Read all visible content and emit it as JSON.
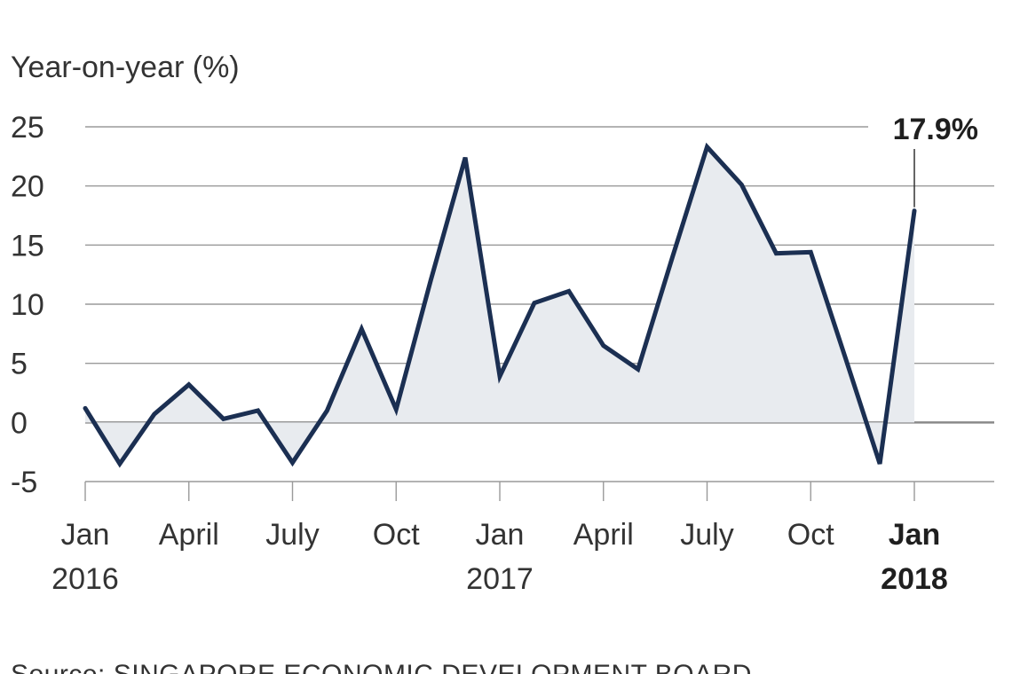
{
  "chart_data": {
    "type": "area",
    "ylabel": "Year-on-year (%)",
    "ylim": [
      -5,
      25
    ],
    "yticks": [
      25,
      20,
      15,
      10,
      5,
      0,
      -5
    ],
    "grid": true,
    "x": [
      "2016-01",
      "2016-02",
      "2016-03",
      "2016-04",
      "2016-05",
      "2016-06",
      "2016-07",
      "2016-08",
      "2016-09",
      "2016-10",
      "2016-11",
      "2016-12",
      "2017-01",
      "2017-02",
      "2017-03",
      "2017-04",
      "2017-05",
      "2017-06",
      "2017-07",
      "2017-08",
      "2017-09",
      "2017-10",
      "2017-11",
      "2017-12",
      "2018-01"
    ],
    "series": [
      {
        "values": [
          1.2,
          -3.5,
          0.7,
          3.2,
          0.3,
          1.0,
          -3.4,
          1.0,
          7.9,
          1.1,
          12.0,
          22.4,
          3.9,
          10.1,
          11.1,
          6.5,
          4.5,
          14.0,
          23.3,
          20.1,
          14.3,
          14.4,
          5.5,
          -3.5,
          17.9
        ]
      }
    ],
    "x_ticks": [
      {
        "index": 0,
        "label": "Jan",
        "sublabel": "2016",
        "bold": false
      },
      {
        "index": 3,
        "label": "April",
        "sublabel": "",
        "bold": false
      },
      {
        "index": 6,
        "label": "July",
        "sublabel": "",
        "bold": false
      },
      {
        "index": 9,
        "label": "Oct",
        "sublabel": "",
        "bold": false
      },
      {
        "index": 12,
        "label": "Jan",
        "sublabel": "2017",
        "bold": false
      },
      {
        "index": 15,
        "label": "April",
        "sublabel": "",
        "bold": false
      },
      {
        "index": 18,
        "label": "July",
        "sublabel": "",
        "bold": false
      },
      {
        "index": 21,
        "label": "Oct",
        "sublabel": "",
        "bold": false
      },
      {
        "index": 24,
        "label": "Jan",
        "sublabel": "2018",
        "bold": true
      }
    ],
    "annotation": {
      "index": 24,
      "text": "17.9%"
    },
    "colors": {
      "line": "#1b2f52",
      "fill": "#e8ebef",
      "grid": "#9a9a9a",
      "zero": "#8a8a8a"
    }
  },
  "source": "Source: SINGAPORE ECONOMIC DEVELOPMENT BOARD"
}
